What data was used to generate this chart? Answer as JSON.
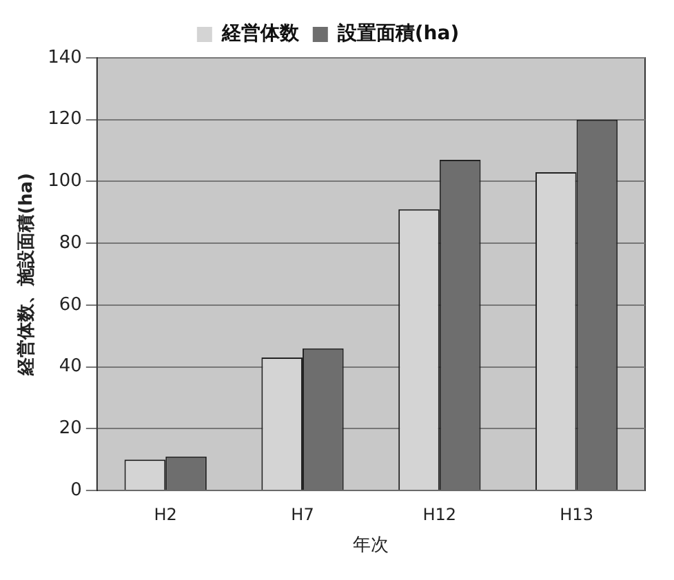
{
  "chart_data": {
    "type": "bar",
    "xlabel": "年次",
    "ylabel": "経営体数、施設面積(ha)",
    "categories": [
      "H2",
      "H7",
      "H12",
      "H13"
    ],
    "series": [
      {
        "name": "経営体数",
        "color": "#d4d4d4",
        "values": [
          10,
          43,
          91,
          103
        ]
      },
      {
        "name": "設置面積(ha)",
        "color": "#6e6e6e",
        "values": [
          11,
          46,
          107,
          120
        ]
      }
    ],
    "ylim": [
      0,
      140
    ],
    "yticks": [
      0,
      20,
      40,
      60,
      80,
      100,
      120,
      140
    ],
    "grid": "y",
    "legend": "top"
  }
}
